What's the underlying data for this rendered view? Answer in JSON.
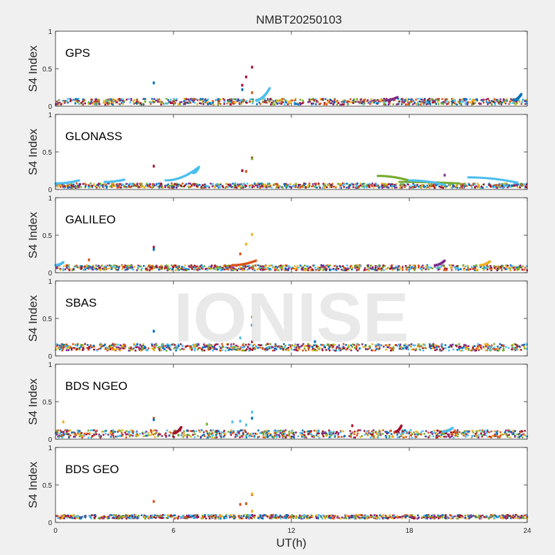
{
  "figure": {
    "title": "NMBT20250103",
    "watermark": "IONISE",
    "xlabel": "UT(h)",
    "ylabel": "S4 Index"
  },
  "colors": {
    "background": "#f0f0f0",
    "axes_bg": "#ffffff",
    "axis": "#262626",
    "watermark": "#e6e6e6",
    "palette": [
      "#0072BD",
      "#D95319",
      "#EDB120",
      "#7E2F8E",
      "#77AC30",
      "#4DBEEE",
      "#A2142F"
    ]
  },
  "chart_data": [
    {
      "type": "scatter",
      "label": "GPS",
      "xlim": [
        0,
        24
      ],
      "ylim": [
        0,
        1
      ],
      "xticks": [
        0,
        6,
        12,
        18,
        24
      ],
      "yticks": [
        0,
        0.5,
        1
      ],
      "baseline": [
        0.02,
        0.1
      ],
      "bands": [
        {
          "x": [
            10.2,
            10.9
          ],
          "y": [
            0.08,
            0.24
          ],
          "color": 5
        },
        {
          "x": [
            23.3,
            23.7
          ],
          "y": [
            0.08,
            0.16
          ],
          "color": 0
        },
        {
          "x": [
            16.8,
            17.4
          ],
          "y": [
            0.08,
            0.12
          ],
          "color": 3
        }
      ],
      "points": [
        {
          "x": 5.0,
          "y": 0.31,
          "color": 0
        },
        {
          "x": 9.5,
          "y": 0.28,
          "color": 6
        },
        {
          "x": 9.5,
          "y": 0.22,
          "color": 0
        },
        {
          "x": 9.7,
          "y": 0.39,
          "color": 6
        },
        {
          "x": 10.0,
          "y": 0.52,
          "color": 6
        },
        {
          "x": 10.0,
          "y": 0.18,
          "color": 1
        }
      ]
    },
    {
      "type": "scatter",
      "label": "GLONASS",
      "xlim": [
        0,
        24
      ],
      "ylim": [
        0,
        1
      ],
      "xticks": [
        0,
        6,
        12,
        18,
        24
      ],
      "yticks": [
        0,
        0.5,
        1
      ],
      "baseline": [
        0.02,
        0.08
      ],
      "bands": [
        {
          "x": [
            0.0,
            1.2
          ],
          "y": [
            0.08,
            0.12
          ],
          "color": 5
        },
        {
          "x": [
            5.6,
            7.2
          ],
          "y": [
            0.12,
            0.28
          ],
          "color": 5
        },
        {
          "x": [
            7.0,
            7.3
          ],
          "y": [
            0.22,
            0.3
          ],
          "color": 5
        },
        {
          "x": [
            16.4,
            18.2
          ],
          "y": [
            0.18,
            0.1
          ],
          "color": 4
        },
        {
          "x": [
            17.5,
            20.5
          ],
          "y": [
            0.1,
            0.08
          ],
          "color": 4
        },
        {
          "x": [
            18.0,
            19.8
          ],
          "y": [
            0.12,
            0.06
          ],
          "color": 5
        },
        {
          "x": [
            21.0,
            23.5
          ],
          "y": [
            0.16,
            0.09
          ],
          "color": 5
        },
        {
          "x": [
            2.5,
            3.5
          ],
          "y": [
            0.1,
            0.13
          ],
          "color": 5
        }
      ],
      "points": [
        {
          "x": 5.0,
          "y": 0.31,
          "color": 6
        },
        {
          "x": 9.5,
          "y": 0.25,
          "color": 6
        },
        {
          "x": 9.7,
          "y": 0.24,
          "color": 1
        },
        {
          "x": 10.0,
          "y": 0.42,
          "color": 6
        },
        {
          "x": 10.0,
          "y": 0.41,
          "color": 4
        },
        {
          "x": 19.8,
          "y": 0.19,
          "color": 3
        }
      ]
    },
    {
      "type": "scatter",
      "label": "GALILEO",
      "xlim": [
        0,
        24
      ],
      "ylim": [
        0,
        1
      ],
      "xticks": [
        0,
        6,
        12,
        18,
        24
      ],
      "yticks": [
        0,
        0.5,
        1
      ],
      "baseline": [
        0.03,
        0.1
      ],
      "bands": [
        {
          "x": [
            0.0,
            0.4
          ],
          "y": [
            0.1,
            0.14
          ],
          "color": 5
        },
        {
          "x": [
            9.0,
            10.2
          ],
          "y": [
            0.1,
            0.16
          ],
          "color": 1
        },
        {
          "x": [
            19.3,
            19.8
          ],
          "y": [
            0.1,
            0.16
          ],
          "color": 3
        },
        {
          "x": [
            21.6,
            22.1
          ],
          "y": [
            0.1,
            0.15
          ],
          "color": 2
        }
      ],
      "points": [
        {
          "x": 1.7,
          "y": 0.17,
          "color": 1
        },
        {
          "x": 5.0,
          "y": 0.34,
          "color": 6
        },
        {
          "x": 5.0,
          "y": 0.31,
          "color": 0
        },
        {
          "x": 9.4,
          "y": 0.25,
          "color": 1
        },
        {
          "x": 9.7,
          "y": 0.38,
          "color": 2
        },
        {
          "x": 10.0,
          "y": 0.51,
          "color": 2
        }
      ]
    },
    {
      "type": "scatter",
      "label": "SBAS",
      "xlim": [
        0,
        24
      ],
      "ylim": [
        0,
        1
      ],
      "xticks": [
        0,
        6,
        12,
        18,
        24
      ],
      "yticks": [
        0,
        0.5,
        1
      ],
      "baseline": [
        0.07,
        0.16
      ],
      "bands": [],
      "points": [
        {
          "x": 5.0,
          "y": 0.33,
          "color": 0
        },
        {
          "x": 9.4,
          "y": 0.24,
          "color": 5
        },
        {
          "x": 10.0,
          "y": 0.52,
          "color": 4
        },
        {
          "x": 10.0,
          "y": 0.41,
          "color": 0
        },
        {
          "x": 10.0,
          "y": 0.19,
          "color": 6
        },
        {
          "x": 13.2,
          "y": 0.19,
          "color": 0
        }
      ]
    },
    {
      "type": "scatter",
      "label": "BDS NGEO",
      "xlim": [
        0,
        24
      ],
      "ylim": [
        0,
        1
      ],
      "xticks": [
        0,
        6,
        12,
        18,
        24
      ],
      "yticks": [
        0,
        0.5,
        1
      ],
      "baseline": [
        0.02,
        0.12
      ],
      "bands": [
        {
          "x": [
            6.0,
            6.4
          ],
          "y": [
            0.08,
            0.16
          ],
          "color": 6
        },
        {
          "x": [
            17.3,
            17.6
          ],
          "y": [
            0.1,
            0.18
          ],
          "color": 6
        },
        {
          "x": [
            19.7,
            20.2
          ],
          "y": [
            0.1,
            0.15
          ],
          "color": 5
        }
      ],
      "points": [
        {
          "x": 0.4,
          "y": 0.23,
          "color": 2
        },
        {
          "x": 5.0,
          "y": 0.28,
          "color": 1
        },
        {
          "x": 5.0,
          "y": 0.26,
          "color": 0
        },
        {
          "x": 7.7,
          "y": 0.2,
          "color": 4
        },
        {
          "x": 9.0,
          "y": 0.23,
          "color": 5
        },
        {
          "x": 9.4,
          "y": 0.24,
          "color": 5
        },
        {
          "x": 9.7,
          "y": 0.19,
          "color": 5
        },
        {
          "x": 10.0,
          "y": 0.36,
          "color": 5
        },
        {
          "x": 10.0,
          "y": 0.28,
          "color": 0
        },
        {
          "x": 15.1,
          "y": 0.18,
          "color": 6
        }
      ]
    },
    {
      "type": "scatter",
      "label": "BDS GEO",
      "xlim": [
        0,
        24
      ],
      "ylim": [
        0,
        1
      ],
      "xticks": [
        0,
        6,
        12,
        18,
        24
      ],
      "yticks": [
        0,
        0.5,
        1
      ],
      "baseline": [
        0.05,
        0.1
      ],
      "bands": [],
      "points": [
        {
          "x": 5.0,
          "y": 0.28,
          "color": 1
        },
        {
          "x": 9.4,
          "y": 0.24,
          "color": 1
        },
        {
          "x": 9.7,
          "y": 0.25,
          "color": 1
        },
        {
          "x": 10.0,
          "y": 0.37,
          "color": 1
        },
        {
          "x": 10.0,
          "y": 0.38,
          "color": 2
        },
        {
          "x": 10.0,
          "y": 0.15,
          "color": 2
        }
      ]
    }
  ]
}
